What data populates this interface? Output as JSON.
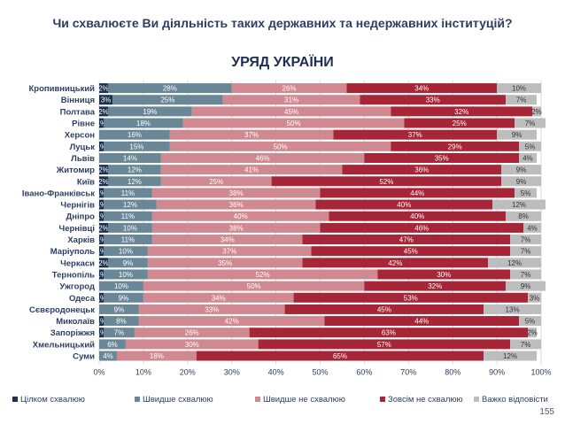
{
  "header": {
    "question": "Чи схвалюєте Ви діяльність таких державних та недержавних інституцій?",
    "subtitle": "УРЯД УКРАЇНИ"
  },
  "page_number": "155",
  "colors": {
    "fully_approve": "#1b3150",
    "rather_approve": "#6a8797",
    "rather_disapprove": "#d18991",
    "fully_disapprove": "#a62537",
    "hard_to_say": "#bdbdbd",
    "grid": "#d9d9d9",
    "label_text": "#2e3d63"
  },
  "chart_data": {
    "type": "bar",
    "orientation": "horizontal",
    "stacked": true,
    "categories": [
      "Кропивницький",
      "Вінниця",
      "Полтава",
      "Рівне",
      "Херсон",
      "Луцьк",
      "Львів",
      "Житомир",
      "Київ",
      "Івано-Франківськ",
      "Чернігів",
      "Дніпро",
      "Чернівці",
      "Харків",
      "Маріуполь",
      "Черкаси",
      "Тернопіль",
      "Ужгород",
      "Одеса",
      "Сєвєродонецьк",
      "Миколаїв",
      "Запоріжжя",
      "Хмельницький",
      "Суми"
    ],
    "series": [
      {
        "name": "Цілком схвалюю",
        "color_key": "fully_approve",
        "values": [
          2,
          3,
          2,
          1,
          0,
          1,
          0,
          2,
          2,
          1,
          1,
          1,
          2,
          1,
          1,
          2,
          1,
          0,
          1,
          0,
          1,
          1,
          0,
          0
        ]
      },
      {
        "name": "Швидше схвалюю",
        "color_key": "rather_approve",
        "values": [
          28,
          25,
          19,
          18,
          16,
          15,
          14,
          12,
          12,
          11,
          12,
          11,
          10,
          11,
          10,
          9,
          10,
          10,
          9,
          9,
          8,
          7,
          6,
          4
        ]
      },
      {
        "name": "Швидше не схвалюю",
        "color_key": "rather_disapprove",
        "values": [
          26,
          31,
          45,
          50,
          37,
          50,
          46,
          41,
          25,
          38,
          36,
          40,
          38,
          34,
          37,
          35,
          52,
          50,
          34,
          33,
          42,
          26,
          30,
          18
        ]
      },
      {
        "name": "Зовсім не схвалюю",
        "color_key": "fully_disapprove",
        "values": [
          34,
          33,
          32,
          25,
          37,
          29,
          35,
          36,
          52,
          44,
          40,
          40,
          46,
          47,
          45,
          42,
          30,
          32,
          53,
          45,
          44,
          63,
          57,
          65
        ]
      },
      {
        "name": "Важко відповісти",
        "color_key": "hard_to_say",
        "values": [
          10,
          7,
          2,
          7,
          9,
          5,
          4,
          9,
          9,
          5,
          12,
          8,
          4,
          7,
          7,
          12,
          7,
          9,
          3,
          13,
          5,
          2,
          7,
          12
        ]
      }
    ],
    "xlim": [
      0,
      100
    ],
    "x_ticks": [
      "0%",
      "10%",
      "20%",
      "30%",
      "40%",
      "50%",
      "60%",
      "70%",
      "80%",
      "90%",
      "100%"
    ],
    "value_suffix": "%",
    "legend_position": "bottom",
    "grid": true
  }
}
